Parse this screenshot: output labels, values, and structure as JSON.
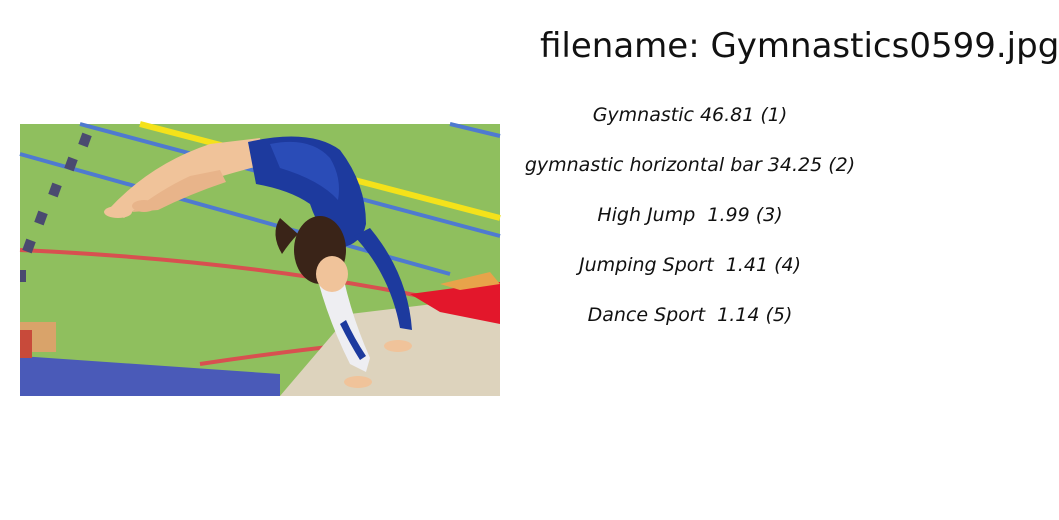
{
  "image": {
    "subject": "gymnast-backbend-on-mat",
    "colors": {
      "floor": "#8fbf5e",
      "leotard": "#1d3a9e",
      "skin": "#f0c39a",
      "hair": "#3a2418",
      "mat_blue": "#4a5ab8",
      "mat_beige": "#ddd3bd",
      "mat_red": "#e3172b",
      "line_yellow": "#f4e21a",
      "line_blue": "#4f7ad0",
      "line_red": "#d85050",
      "line_dash": "#4a4a70"
    }
  },
  "header": {
    "filename": "filename: Gymnastics0599.jpg"
  },
  "predictions": [
    {
      "label": "Gymnastic",
      "score": "46.81",
      "rank": "(1)",
      "text": "Gymnastic 46.81 (1)"
    },
    {
      "label": "gymnastic horizontal bar",
      "score": "34.25",
      "rank": "(2)",
      "text": "gymnastic horizontal bar 34.25 (2)"
    },
    {
      "label": "High Jump",
      "score": "1.99",
      "rank": "(3)",
      "text": "High Jump  1.99 (3)"
    },
    {
      "label": "Jumping Sport",
      "score": "1.41",
      "rank": "(4)",
      "text": "Jumping Sport  1.41 (4)"
    },
    {
      "label": "Dance Sport",
      "score": "1.14",
      "rank": "(5)",
      "text": "Dance Sport  1.14 (5)"
    }
  ]
}
